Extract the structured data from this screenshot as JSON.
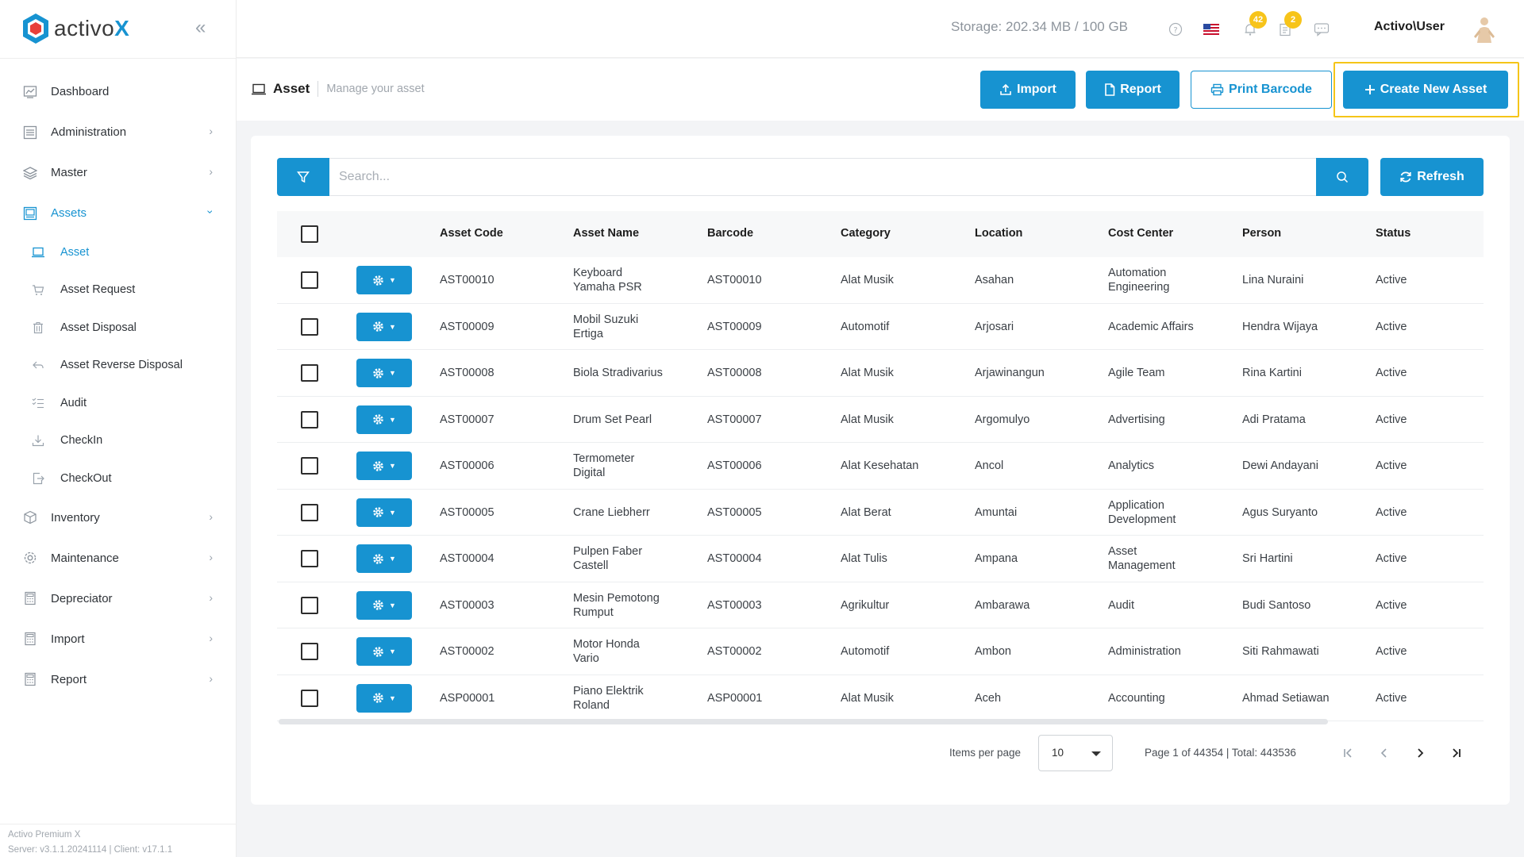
{
  "brand": {
    "name_prefix": "activo",
    "name_suffix": "X"
  },
  "sidebar": {
    "items": [
      {
        "label": "Dashboard",
        "icon": "chart-icon",
        "has_chevron": false
      },
      {
        "label": "Administration",
        "icon": "sliders-icon",
        "has_chevron": true
      },
      {
        "label": "Master",
        "icon": "layers-icon",
        "has_chevron": true
      },
      {
        "label": "Assets",
        "icon": "image-icon",
        "has_chevron": true,
        "expanded": true
      }
    ],
    "asset_sub": [
      {
        "label": "Asset",
        "icon": "laptop-icon"
      },
      {
        "label": "Asset Request",
        "icon": "cart-icon"
      },
      {
        "label": "Asset Disposal",
        "icon": "trash-icon"
      },
      {
        "label": "Asset Reverse Disposal",
        "icon": "undo-icon"
      },
      {
        "label": "Audit",
        "icon": "checklist-icon"
      },
      {
        "label": "CheckIn",
        "icon": "download-icon"
      },
      {
        "label": "CheckOut",
        "icon": "export-icon"
      }
    ],
    "items_after": [
      {
        "label": "Inventory",
        "icon": "box-icon"
      },
      {
        "label": "Maintenance",
        "icon": "gear-icon"
      },
      {
        "label": "Depreciator",
        "icon": "calculator-icon"
      },
      {
        "label": "Import",
        "icon": "calculator-icon"
      },
      {
        "label": "Report",
        "icon": "calculator-icon"
      }
    ],
    "footer": {
      "line1": "Activo Premium X",
      "line2": "Server: v3.1.1.20241114 | Client: v17.1.1"
    }
  },
  "topbar": {
    "storage": "Storage: 202.34 MB / 100 GB",
    "notif_count": "42",
    "task_count": "2",
    "username": "Activo\\User"
  },
  "page": {
    "title": "Asset",
    "subtitle": "Manage your asset",
    "buttons": {
      "import": "Import",
      "report": "Report",
      "print_barcode": "Print Barcode",
      "create": "Create New Asset"
    }
  },
  "search": {
    "placeholder": "Search...",
    "refresh": "Refresh"
  },
  "table": {
    "columns": [
      "Asset Code",
      "Asset Name",
      "Barcode",
      "Category",
      "Location",
      "Cost Center",
      "Person",
      "Status"
    ],
    "rows": [
      {
        "code": "AST00010",
        "name": [
          "Keyboard",
          "Yamaha PSR"
        ],
        "barcode": "AST00010",
        "category": "Alat Musik",
        "location": "Asahan",
        "cost_center": [
          "Automation",
          "Engineering"
        ],
        "person": "Lina Nuraini",
        "status": "Active"
      },
      {
        "code": "AST00009",
        "name": [
          "Mobil Suzuki",
          "Ertiga"
        ],
        "barcode": "AST00009",
        "category": "Automotif",
        "location": "Arjosari",
        "cost_center": [
          "Academic Affairs"
        ],
        "person": "Hendra Wijaya",
        "status": "Active"
      },
      {
        "code": "AST00008",
        "name": [
          "Biola Stradivarius"
        ],
        "barcode": "AST00008",
        "category": "Alat Musik",
        "location": "Arjawinangun",
        "cost_center": [
          "Agile Team"
        ],
        "person": "Rina Kartini",
        "status": "Active"
      },
      {
        "code": "AST00007",
        "name": [
          "Drum Set Pearl"
        ],
        "barcode": "AST00007",
        "category": "Alat Musik",
        "location": "Argomulyo",
        "cost_center": [
          "Advertising"
        ],
        "person": "Adi Pratama",
        "status": "Active"
      },
      {
        "code": "AST00006",
        "name": [
          "Termometer",
          "Digital"
        ],
        "barcode": "AST00006",
        "category": "Alat Kesehatan",
        "location": "Ancol",
        "cost_center": [
          "Analytics"
        ],
        "person": "Dewi Andayani",
        "status": "Active"
      },
      {
        "code": "AST00005",
        "name": [
          "Crane Liebherr"
        ],
        "barcode": "AST00005",
        "category": "Alat Berat",
        "location": "Amuntai",
        "cost_center": [
          "Application",
          "Development"
        ],
        "person": "Agus Suryanto",
        "status": "Active"
      },
      {
        "code": "AST00004",
        "name": [
          "Pulpen Faber",
          "Castell"
        ],
        "barcode": "AST00004",
        "category": "Alat Tulis",
        "location": "Ampana",
        "cost_center": [
          "Asset",
          "Management"
        ],
        "person": "Sri Hartini",
        "status": "Active"
      },
      {
        "code": "AST00003",
        "name": [
          "Mesin Pemotong",
          "Rumput"
        ],
        "barcode": "AST00003",
        "category": "Agrikultur",
        "location": "Ambarawa",
        "cost_center": [
          "Audit"
        ],
        "person": "Budi Santoso",
        "status": "Active"
      },
      {
        "code": "AST00002",
        "name": [
          "Motor Honda",
          "Vario"
        ],
        "barcode": "AST00002",
        "category": "Automotif",
        "location": "Ambon",
        "cost_center": [
          "Administration"
        ],
        "person": "Siti Rahmawati",
        "status": "Active"
      },
      {
        "code": "ASP00001",
        "name": [
          "Piano Elektrik",
          "Roland"
        ],
        "barcode": "ASP00001",
        "category": "Alat Musik",
        "location": "Aceh",
        "cost_center": [
          "Accounting"
        ],
        "person": "Ahmad Setiawan",
        "status": "Active"
      }
    ]
  },
  "pagination": {
    "items_per_page_label": "Items per page",
    "items_per_page": "10",
    "page_info": "Page 1 of 44354 | Total: 443536"
  },
  "colors": {
    "primary": "#1793d1",
    "badge": "#f7c41a",
    "highlight": "#f5c518"
  }
}
